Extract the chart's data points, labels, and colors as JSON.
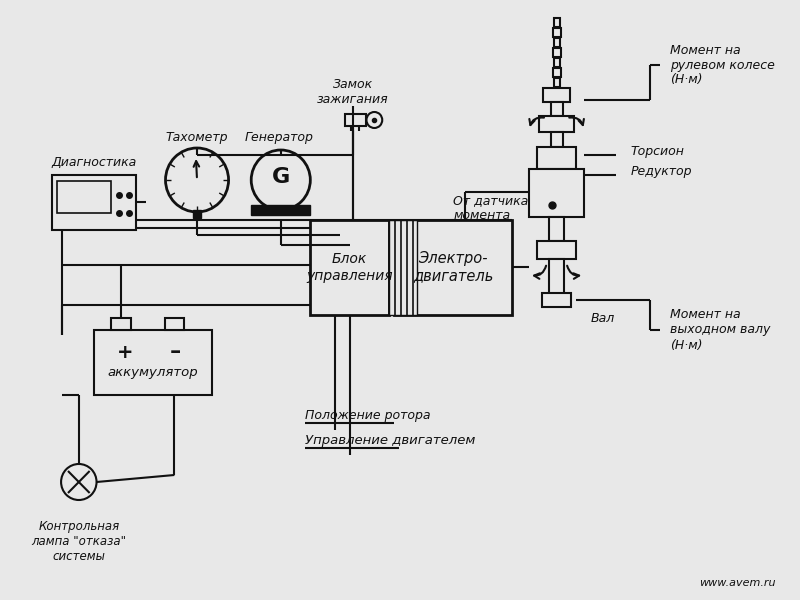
{
  "bg_color": "#e8e8e8",
  "line_color": "#111111",
  "text_color": "#111111",
  "watermark": "www.avem.ru",
  "label_diagnostics": "Диагностика",
  "label_tachometer": "Тахометр",
  "label_generator": "Генератор",
  "label_ignition": "Замок\nзажигания",
  "label_from_sensor": "От датчика\nмомента",
  "label_torsion": "Торсион",
  "label_reducer": "Редуктор",
  "label_moment_wheel": "Момент на\nрулевом колесе\n(Н·м)",
  "label_moment_shaft": "Момент на\nвыходном валу\n(Н·м)",
  "label_shaft": "Вал",
  "label_electromotor": "Электро-\nдвигатель",
  "label_control_block": "Блок\nуправления",
  "label_accumulator": "аккумулятор",
  "label_rotor_pos": "Положение ротора",
  "label_motor_control": "Управление двигателем",
  "label_warning_lamp": "Контрольная\nлампа \"отказа\"\nсистемы",
  "label_g": "G"
}
